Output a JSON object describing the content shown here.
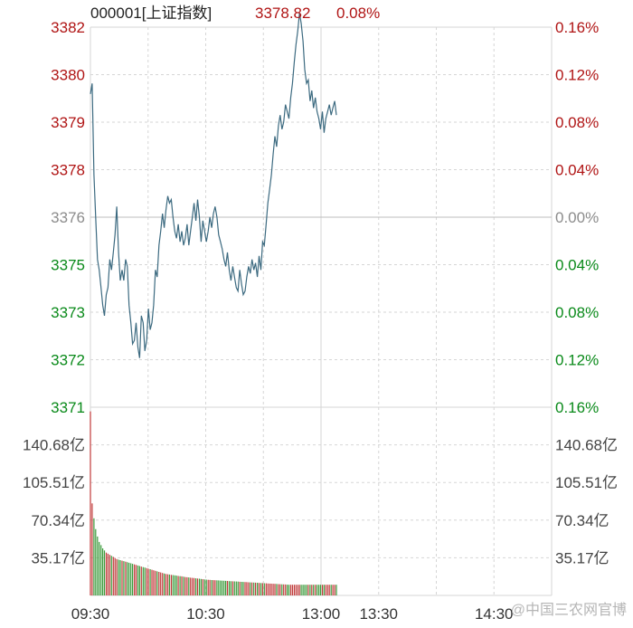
{
  "header": {
    "code_name": "000001[上证指数]",
    "price": "3378.82",
    "change_pct": "0.08%"
  },
  "watermark": "@中国三农网官博",
  "colors": {
    "up": "#b01515",
    "down": "#0a8a1a",
    "neutral": "#8c8c8c",
    "line": "#3c6a80",
    "volume_up": "#c03a3a",
    "volume_down": "#3a9a3a",
    "grid": "#d6d6d6"
  },
  "chart_data": [
    {
      "type": "line",
      "title": "000001[上证指数]",
      "x_ticks": [
        "09:30",
        "10:30",
        "13:00",
        "13:30",
        "14:30"
      ],
      "y_left_ticks": [
        "3382",
        "3380",
        "3379",
        "3378",
        "3376",
        "3375",
        "3373",
        "3372",
        "3371"
      ],
      "y_right_ticks": [
        "0.16%",
        "0.12%",
        "0.08%",
        "0.04%",
        "0.00%",
        "0.04%",
        "0.08%",
        "0.12%",
        "0.16%"
      ],
      "ylim": [
        3370.6,
        3381.4
      ],
      "prev_close": 3376.0,
      "series": [
        {
          "values": [
            3379.5,
            3379.8,
            3377.2,
            3376.0,
            3374.8,
            3374.5,
            3374.0,
            3373.5,
            3373.2,
            3373.8,
            3374.0,
            3374.8,
            3374.5,
            3375.0,
            3375.5,
            3376.3,
            3375.0,
            3374.2,
            3374.5,
            3374.2,
            3374.8,
            3374.6,
            3373.5,
            3373.0,
            3372.4,
            3372.5,
            3373.0,
            3372.3,
            3372.0,
            3373.2,
            3373.0,
            3372.2,
            3372.5,
            3373.4,
            3372.8,
            3373.0,
            3373.5,
            3374.5,
            3374.3,
            3375.2,
            3375.6,
            3376.1,
            3375.7,
            3376.2,
            3376.6,
            3376.4,
            3376.5,
            3376.0,
            3375.6,
            3375.4,
            3375.8,
            3375.3,
            3375.6,
            3375.2,
            3375.4,
            3375.8,
            3375.2,
            3375.6,
            3376.0,
            3376.4,
            3375.9,
            3376.5,
            3376.0,
            3375.3,
            3375.9,
            3375.6,
            3375.3,
            3375.6,
            3376.0,
            3375.7,
            3376.1,
            3376.3,
            3376.0,
            3375.5,
            3375.3,
            3375.1,
            3374.8,
            3374.6,
            3375.0,
            3374.5,
            3374.2,
            3374.6,
            3374.3,
            3374.0,
            3373.9,
            3374.5,
            3374.1,
            3373.8,
            3373.9,
            3374.3,
            3374.6,
            3374.4,
            3374.8,
            3374.5,
            3374.7,
            3374.3,
            3374.9,
            3374.5,
            3375.3,
            3375.2,
            3375.8,
            3376.4,
            3376.8,
            3377.2,
            3377.8,
            3378.3,
            3378.0,
            3378.6,
            3378.9,
            3378.5,
            3378.7,
            3379.2,
            3379.0,
            3378.8,
            3379.4,
            3379.8,
            3380.4,
            3380.9,
            3381.3,
            3381.8,
            3381.5,
            3381.0,
            3380.2,
            3379.8,
            3379.9,
            3379.3,
            3379.6,
            3379.1,
            3379.4,
            3379.0,
            3378.8,
            3378.5,
            3379.0,
            3378.4,
            3378.8,
            3379.0,
            3379.2,
            3378.9,
            3379.1,
            3379.3,
            3378.9
          ]
        }
      ]
    },
    {
      "type": "bar",
      "title": "",
      "y_ticks": [
        "140.68亿",
        "105.51亿",
        "70.34亿",
        "35.17亿"
      ],
      "ylim": [
        0,
        175.85
      ],
      "unit": "亿",
      "values": [
        172,
        86,
        72,
        62,
        55,
        50,
        47,
        44,
        42,
        40,
        39,
        38,
        37,
        36,
        35,
        34,
        33.5,
        33,
        32.5,
        32,
        31.5,
        31,
        30.5,
        30,
        29.5,
        29,
        28.5,
        28,
        27.5,
        27,
        26.5,
        26,
        25.5,
        25,
        24.5,
        24,
        23.5,
        23,
        22.5,
        22,
        21.5,
        21,
        20.5,
        20,
        19.8,
        19.5,
        19.2,
        19,
        18.8,
        18.5,
        18.2,
        18,
        17.8,
        17.5,
        17.2,
        17,
        16.8,
        16.6,
        16.4,
        16.2,
        16,
        15.8,
        15.6,
        15.4,
        15.2,
        15,
        14.8,
        14.6,
        14.5,
        14.4,
        14.3,
        14.2,
        14.1,
        14,
        13.9,
        13.8,
        13.7,
        13.6,
        13.5,
        13.4,
        13.3,
        13.2,
        13.1,
        13,
        12.9,
        12.8,
        12.7,
        12.6,
        12.5,
        12.4,
        12.3,
        12.2,
        12.1,
        12,
        11.9,
        11.8,
        11.7,
        11.6,
        11.5,
        11.4,
        11.3,
        11.2,
        11.1,
        11,
        10.9,
        10.8,
        10.7,
        10.6,
        10.5,
        10.4,
        10.3,
        10.2,
        10.1,
        10,
        10,
        10,
        10,
        10,
        10,
        10,
        10,
        10,
        10,
        10,
        10,
        10,
        10,
        10,
        10,
        10,
        10,
        10,
        10,
        10,
        10,
        10,
        10,
        10,
        10,
        10,
        10
      ]
    }
  ]
}
